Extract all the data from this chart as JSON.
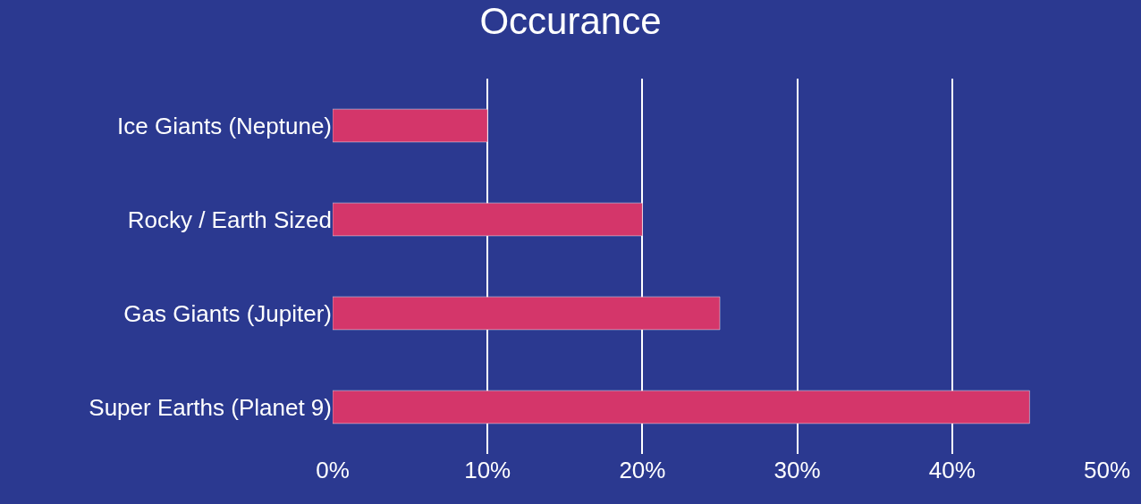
{
  "chart_data": {
    "type": "bar",
    "orientation": "horizontal",
    "title": "Occurance",
    "categories": [
      "Ice Giants (Neptune)",
      "Rocky / Earth Sized",
      "Gas Giants (Jupiter)",
      "Super Earths (Planet 9)"
    ],
    "values": [
      10,
      20,
      25,
      45
    ],
    "color": "#d4366a",
    "xlim": [
      0,
      50
    ],
    "xticks": [
      {
        "value": 0,
        "label": "0%"
      },
      {
        "value": 10,
        "label": "10%"
      },
      {
        "value": 20,
        "label": "20%"
      },
      {
        "value": 30,
        "label": "30%"
      },
      {
        "value": 40,
        "label": "40%"
      },
      {
        "value": 50,
        "label": "50%"
      }
    ],
    "grid": "x",
    "legend": false
  }
}
